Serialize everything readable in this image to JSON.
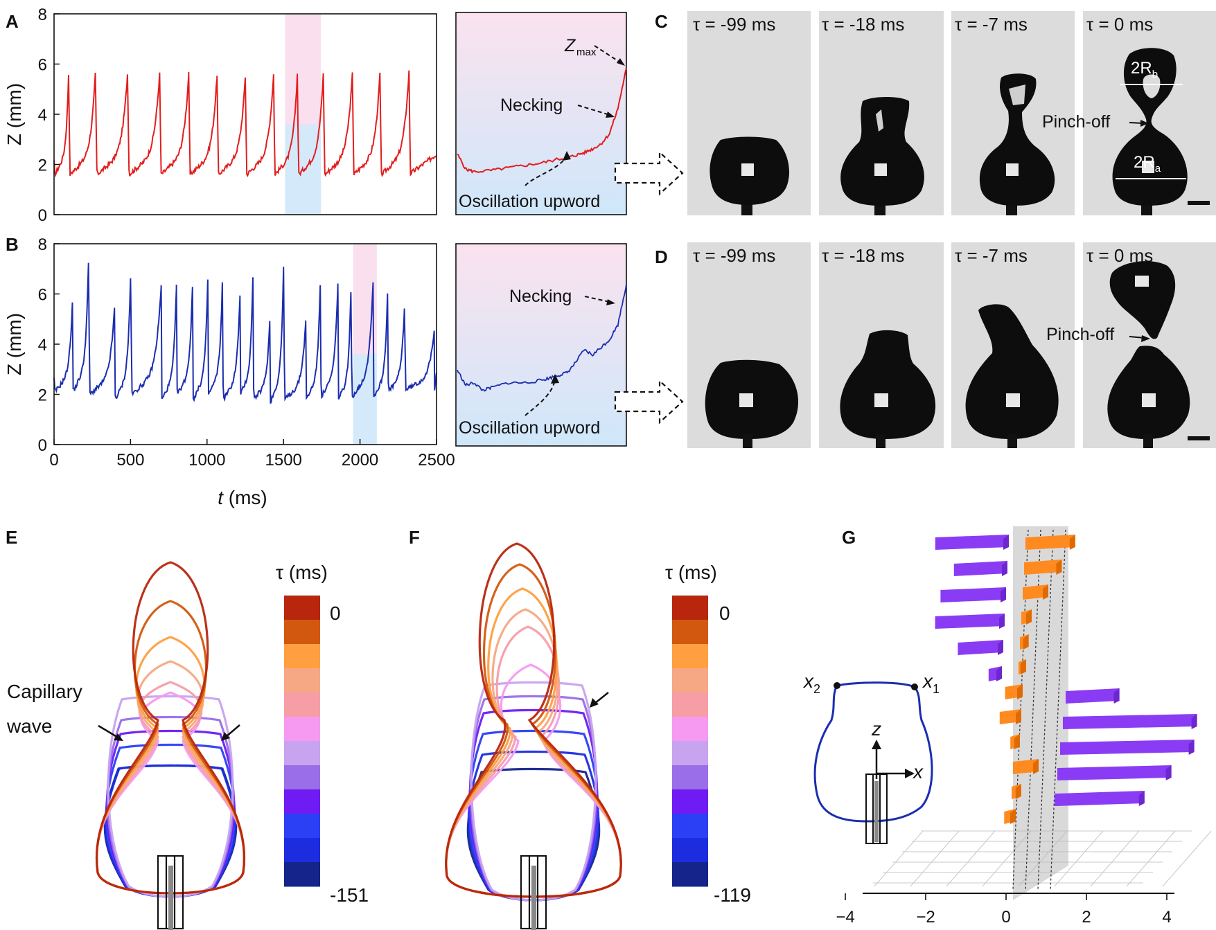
{
  "panel_letters": [
    "A",
    "B",
    "C",
    "D",
    "E",
    "F",
    "G"
  ],
  "colors": {
    "red": "#e31d1d",
    "blue": "#1b2db0",
    "pink": "#f9d8ea",
    "light_blue": "#cfe7fa",
    "frame_bg": "#dcdcdc",
    "drop": "#0d0d0d",
    "purple": "#8a3cf5",
    "orange": "#ff8a1f",
    "colorbar": [
      "#b8260e",
      "#d3580f",
      "#ff9f40",
      "#f5a883",
      "#f79da6",
      "#f59af0",
      "#c7a3f0",
      "#9a6ee8",
      "#6e1cf3",
      "#2b3ff5",
      "#1c2de0",
      "#14248a"
    ]
  },
  "chart_data": [
    {
      "id": "A",
      "type": "line",
      "title": "",
      "xlabel": "t (ms)",
      "ylabel": "Z (mm)",
      "xlim": [
        0,
        2500
      ],
      "ylim": [
        0,
        8
      ],
      "yticks": [
        "0",
        "2",
        "4",
        "6",
        "8"
      ],
      "series": [
        {
          "name": "Z red",
          "color": "#e31d1d",
          "peaks_t": [
            95,
            270,
            480,
            690,
            880,
            1065,
            1250,
            1435,
            1590,
            1760,
            1950,
            2130,
            2320
          ],
          "peak_z": [
            5.6,
            5.6,
            5.6,
            5.6,
            5.6,
            5.5,
            5.5,
            5.6,
            5.6,
            5.6,
            5.6,
            5.6,
            5.7
          ],
          "trough_z": [
            1.6,
            1.6,
            1.6,
            1.6,
            1.6,
            1.6,
            1.6,
            1.6,
            1.6,
            1.6,
            1.6,
            1.6,
            1.6
          ]
        }
      ],
      "highlight_window": [
        1510,
        1745
      ]
    },
    {
      "id": "B",
      "type": "line",
      "xlabel": "t (ms)",
      "ylabel": "Z (mm)",
      "xlim": [
        0,
        2500
      ],
      "ylim": [
        0,
        8
      ],
      "xticks": [
        "0",
        "500",
        "1000",
        "1500",
        "2000",
        "2500"
      ],
      "yticks": [
        "0",
        "2",
        "4",
        "6",
        "8"
      ],
      "series": [
        {
          "name": "Z blue",
          "color": "#1b2db0",
          "peaks_t": [
            120,
            225,
            395,
            500,
            700,
            800,
            905,
            1005,
            1100,
            1215,
            1300,
            1410,
            1500,
            1645,
            1740,
            1855,
            1940,
            2085,
            2180,
            2290,
            2485
          ],
          "peak_z": [
            5.6,
            7.2,
            5.4,
            6.6,
            6.3,
            6.3,
            6.3,
            6.5,
            6.4,
            5.9,
            6.7,
            4.9,
            7.0,
            4.9,
            6.4,
            6.4,
            6.0,
            6.5,
            6.0,
            5.4,
            4.5
          ],
          "trough_z": [
            2.1,
            2.1,
            2.0,
            1.8,
            2.0,
            1.8,
            2.0,
            1.8,
            2.0,
            1.8,
            2.0,
            1.8,
            1.7,
            1.8,
            1.8,
            1.9,
            1.8,
            1.9,
            1.9,
            2.1,
            2.2
          ]
        }
      ],
      "highlight_window": [
        1955,
        2110
      ]
    },
    {
      "id": "A-zoom",
      "type": "line",
      "series": [
        {
          "name": "zoom red",
          "color": "#e31d1d",
          "x": [
            0,
            0.05,
            0.1,
            0.2,
            0.3,
            0.4,
            0.5,
            0.6,
            0.65,
            0.7,
            0.75,
            0.8,
            0.85,
            0.9,
            0.95,
            1.0
          ],
          "y": [
            2.4,
            1.8,
            1.7,
            1.75,
            1.85,
            1.95,
            2.05,
            2.2,
            2.25,
            2.35,
            2.45,
            2.6,
            2.8,
            3.2,
            4.2,
            5.8
          ]
        }
      ],
      "ylim": [
        0,
        8
      ],
      "annotations": [
        "Z",
        "max",
        "Necking",
        "Oscillation upword"
      ]
    },
    {
      "id": "B-zoom",
      "type": "line",
      "series": [
        {
          "name": "zoom blue",
          "color": "#1b2db0",
          "x": [
            0,
            0.05,
            0.1,
            0.15,
            0.2,
            0.3,
            0.4,
            0.5,
            0.55,
            0.6,
            0.65,
            0.7,
            0.75,
            0.8,
            0.85,
            0.9,
            0.95,
            1.0
          ],
          "y": [
            3.0,
            2.4,
            2.5,
            2.2,
            2.3,
            2.5,
            2.5,
            2.6,
            2.7,
            2.8,
            2.9,
            3.3,
            3.8,
            3.6,
            3.9,
            4.2,
            4.8,
            6.4
          ]
        }
      ],
      "ylim": [
        0,
        8
      ],
      "annotations": [
        "Necking",
        "Oscillation upword"
      ]
    },
    {
      "id": "G",
      "type": "bar",
      "xticks": [
        "−4",
        "−2",
        "0",
        "2",
        "4"
      ],
      "series": [
        {
          "name": "x2 (left contour point)",
          "color": "#8a3cf5",
          "values": [
            -1.9,
            -1.4,
            -1.7,
            -1.8,
            -1.2,
            -0.4
          ]
        },
        {
          "name": "x1 (right contour point)",
          "color": "#8a3cf5",
          "values": [
            1.2,
            3.2,
            3.2,
            2.7,
            2.1
          ]
        },
        {
          "name": "difference",
          "color": "#ff8a1f",
          "values": [
            1.1,
            0.8,
            0.5,
            0.12,
            0.08,
            0.05,
            -0.3,
            -0.4,
            -0.1,
            0.5,
            0.1,
            -0.15
          ]
        }
      ],
      "inset_labels": {
        "x2": "x",
        "x2_sub": "2",
        "x1": "x",
        "x1_sub": "1",
        "z": "z",
        "x": "x"
      }
    }
  ],
  "panel_A": {
    "xlabel_t": "t",
    "xlabel_unit": " (ms)"
  },
  "panel_C": {
    "frames": [
      "τ = -99 ms",
      "τ = -18 ms",
      "τ = -7 ms",
      "τ = 0 ms"
    ],
    "labels": {
      "two_rb": "2R",
      "rb_sub": "b",
      "two_ra": "2R",
      "ra_sub": "a",
      "pinch": "Pinch-off"
    }
  },
  "panel_D": {
    "frames": [
      "τ = -99 ms",
      "τ = -18 ms",
      "τ = -7 ms",
      "τ = 0 ms"
    ],
    "labels": {
      "pinch": "Pinch-off"
    }
  },
  "panel_E": {
    "colorbar_title": "τ (ms)",
    "cb_top": "0",
    "cb_bottom": "-151",
    "label_line1": "Capillary",
    "label_line2": "wave"
  },
  "panel_F": {
    "colorbar_title": "τ (ms)",
    "cb_top": "0",
    "cb_bottom": "-119"
  }
}
